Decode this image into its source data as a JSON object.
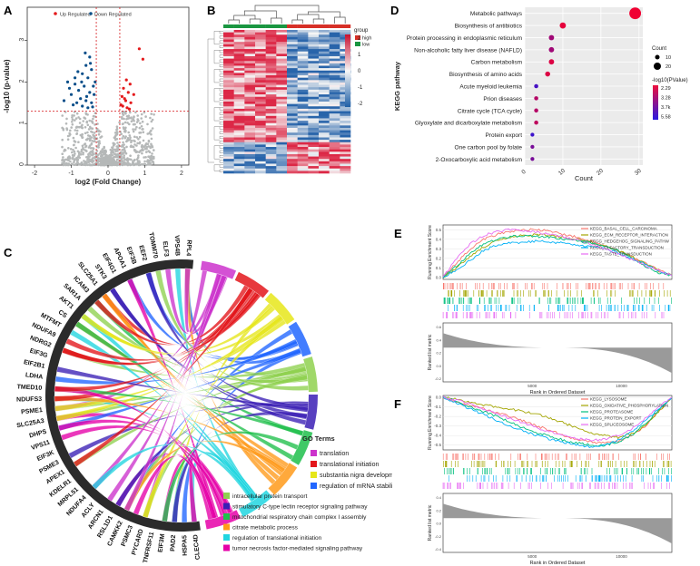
{
  "panel_labels": {
    "a": "A",
    "b": "B",
    "c": "C",
    "d": "D",
    "e": "E",
    "f": "F"
  },
  "colors": {
    "up": "#e41a1c",
    "down": "#0b4f8a",
    "ns": "#b5b8b8",
    "heat_high": "#c0143c",
    "heat_low": "#1f5fa6",
    "heat_mid": "#f4f4f4",
    "group_high": "#d73027",
    "group_low": "#1a9641"
  },
  "chart_data": [
    {
      "id": "volcano",
      "type": "scatter",
      "title": "",
      "xlabel": "log2 (Fold Change)",
      "ylabel": "-log10 (p-value)",
      "xlim": [
        -2.2,
        2.2
      ],
      "ylim": [
        0,
        3.8
      ],
      "x_ticks": [
        "-2",
        "-1",
        "0",
        "1",
        "2"
      ],
      "y_ticks": [
        "0",
        "1",
        "2",
        "3"
      ],
      "thresholds": {
        "logfc": 0.32,
        "neglog10p": 1.3
      },
      "legend": [
        {
          "label": "Up Regulated",
          "color": "#e41a1c"
        },
        {
          "label": "Down Regulated",
          "color": "#0b4f8a"
        }
      ],
      "series": [
        {
          "name": "Up Regulated",
          "color": "#e41a1c",
          "points": [
            [
              0.85,
              2.8
            ],
            [
              0.5,
              2.05
            ],
            [
              0.6,
              1.95
            ],
            [
              0.42,
              1.85
            ],
            [
              0.55,
              1.75
            ],
            [
              0.7,
              1.7
            ],
            [
              0.38,
              1.65
            ],
            [
              0.48,
              1.55
            ],
            [
              0.62,
              1.5
            ],
            [
              0.4,
              1.42
            ],
            [
              0.52,
              1.38
            ],
            [
              0.95,
              2.55
            ],
            [
              0.45,
              1.6
            ],
            [
              0.35,
              1.45
            ],
            [
              0.58,
              1.35
            ]
          ]
        },
        {
          "name": "Down Regulated",
          "color": "#0b4f8a",
          "points": [
            [
              -1.1,
              2.0
            ],
            [
              -0.9,
              1.95
            ],
            [
              -0.7,
              2.2
            ],
            [
              -0.6,
              2.4
            ],
            [
              -0.5,
              2.6
            ],
            [
              -0.45,
              2.3
            ],
            [
              -0.8,
              1.8
            ],
            [
              -1.0,
              1.7
            ],
            [
              -0.55,
              2.1
            ],
            [
              -0.65,
              1.9
            ],
            [
              -0.75,
              1.6
            ],
            [
              -0.4,
              1.9
            ],
            [
              -0.5,
              1.75
            ],
            [
              -0.6,
              1.55
            ],
            [
              -0.85,
              1.5
            ],
            [
              -0.95,
              1.45
            ],
            [
              -0.7,
              1.42
            ],
            [
              -0.45,
              1.5
            ],
            [
              -0.38,
              1.7
            ],
            [
              -0.55,
              1.38
            ],
            [
              -1.2,
              1.55
            ],
            [
              -0.9,
              2.1
            ],
            [
              -0.35,
              2.0
            ],
            [
              -0.62,
              2.7
            ],
            [
              -0.48,
              2.45
            ],
            [
              -0.72,
              2.0
            ],
            [
              -0.82,
              2.25
            ],
            [
              -1.05,
              1.85
            ],
            [
              -0.42,
              1.4
            ],
            [
              -0.58,
              1.65
            ]
          ]
        }
      ]
    },
    {
      "id": "heatmap",
      "type": "heatmap",
      "title": "",
      "legend_title": "group",
      "groups": [
        "high",
        "low"
      ],
      "color_scale": [
        "2",
        "1",
        "0",
        "-1",
        "-2"
      ],
      "n_rows": 60,
      "n_cols": 12,
      "high_cols": 6
    },
    {
      "id": "kegg_dot",
      "type": "scatter",
      "title": "",
      "xlabel": "Count",
      "ylabel": "KEGG pathway",
      "xlim": [
        0,
        31
      ],
      "x_ticks": [
        "0",
        "10",
        "20",
        "30"
      ],
      "size_legend_title": "Count",
      "size_legend": [
        "10",
        "20"
      ],
      "color_legend_title": "-log10(PValue)",
      "color_legend": [
        "2.29",
        "3.28",
        "3.7k",
        "5.58"
      ],
      "categories": [
        "Metabolic pathways",
        "Biosynthesis of antibiotics",
        "Protein processing in endoplasmic reticulum",
        "Non-alcoholic fatty liver disease (NAFLD)",
        "Carbon metabolism",
        "Biosynthesis of amino acids",
        "Acute myeloid leukemia",
        "Prion diseases",
        "Citrate cycle (TCA cycle)",
        "Glyoxylate and dicarboxylate metabolism",
        "Protein export",
        "One carbon pool by folate",
        "2-Oxocarboxylic acid metabolism"
      ],
      "values": [
        29,
        10,
        7,
        7,
        7,
        6,
        3,
        3,
        3,
        3,
        2,
        2,
        2
      ],
      "pvalue_level": [
        1.0,
        0.95,
        0.6,
        0.6,
        0.9,
        0.9,
        0.15,
        0.7,
        0.7,
        0.75,
        0.1,
        0.4,
        0.4
      ]
    },
    {
      "id": "chord",
      "type": "other",
      "title": "",
      "genes": [
        "RPL4",
        "VPS4B",
        "ELF3",
        "TOMM70",
        "EEF2",
        "EIF3B",
        "APOA1",
        "EIF4G1",
        "STK3",
        "SLC25A1",
        "ICAM3",
        "SAR1A",
        "AKT1",
        "CS",
        "MTFMT",
        "NDUFA9",
        "NDRG2",
        "EIF3G",
        "EIF2B1",
        "LDHA",
        "TMED10",
        "NDUFS3",
        "PSME1",
        "SLC25A3",
        "DHPS",
        "VPS11",
        "EIF3K",
        "PSME3",
        "APEX1",
        "KDELR1",
        "MRPL51",
        "NDUFA4",
        "ACLY",
        "ARCN1",
        "RSL1D1",
        "CAMKK2",
        "PSMC3",
        "PYCARD",
        "TNFRSF11",
        "EIF3M",
        "PAD2",
        "HSPA5",
        "CLEC4D"
      ],
      "legend_title": "GO Terms",
      "legend": [
        {
          "label": "translation",
          "color": "#cc33cc"
        },
        {
          "label": "translational initiation",
          "color": "#e3161b"
        },
        {
          "label": "substantia nigra development",
          "color": "#e6e61a"
        },
        {
          "label": "regulation of mRNA stability",
          "color": "#2166ff"
        },
        {
          "label": "intracellular protein transport",
          "color": "#8fd14f"
        },
        {
          "label": "stimulatory C-type lectin receptor signaling pathway",
          "color": "#3b1fb5"
        },
        {
          "label": "mitochondrial respiratory chain complex I assembly",
          "color": "#1fbf4b"
        },
        {
          "label": "citrate metabolic process",
          "color": "#ff9a1a"
        },
        {
          "label": "regulation of translational initiation",
          "color": "#21d6e0"
        },
        {
          "label": "tumor necrosis factor-mediated signaling pathway",
          "color": "#e600a8"
        }
      ]
    },
    {
      "id": "gsea_e",
      "type": "line",
      "title": "",
      "ylabel": "Running Enrichment Score",
      "ylabel2": "Ranked list metric",
      "xlabel": "Rank in Ordered Dataset",
      "x_ticks": [
        "5000",
        "10000"
      ],
      "y_ticks": [
        "0.5",
        "0.4",
        "0.3",
        "0.2",
        "0.1",
        "0.0"
      ],
      "y2_ticks": [
        "0.6",
        "0.4",
        "0.2",
        "0.0",
        "-0.2"
      ],
      "series": [
        {
          "name": "KEGG_BASAL_CELL_CARCINOMA",
          "color": "#f8766d",
          "values": [
            0.0,
            0.15,
            0.3,
            0.4,
            0.45,
            0.48,
            0.5,
            0.5,
            0.48,
            0.45,
            0.42,
            0.38,
            0.33,
            0.28,
            0.22,
            0.15,
            0.08,
            0.03
          ]
        },
        {
          "name": "KEGG_ECM_RECEPTOR_INTERACTION",
          "color": "#a3a500",
          "values": [
            0.0,
            0.1,
            0.22,
            0.32,
            0.38,
            0.42,
            0.44,
            0.45,
            0.44,
            0.42,
            0.4,
            0.37,
            0.33,
            0.28,
            0.22,
            0.15,
            0.07,
            0.02
          ]
        },
        {
          "name": "KEGG_HEDGEHOG_SIGNALING_PATHW",
          "color": "#00bf7d",
          "values": [
            0.0,
            0.12,
            0.25,
            0.35,
            0.4,
            0.43,
            0.44,
            0.43,
            0.42,
            0.4,
            0.38,
            0.36,
            0.33,
            0.28,
            0.2,
            0.12,
            0.05,
            0.02
          ]
        },
        {
          "name": "KEGG_OLFACTORY_TRANSDUCTION",
          "color": "#00b0f6",
          "values": [
            0.0,
            0.08,
            0.18,
            0.28,
            0.34,
            0.36,
            0.37,
            0.38,
            0.37,
            0.36,
            0.34,
            0.32,
            0.3,
            0.26,
            0.2,
            0.14,
            0.07,
            0.02
          ]
        },
        {
          "name": "KEGG_TASTE_TRANSDUCTION",
          "color": "#e76bf3",
          "values": [
            0.0,
            0.2,
            0.35,
            0.44,
            0.48,
            0.5,
            0.49,
            0.47,
            0.45,
            0.42,
            0.39,
            0.35,
            0.3,
            0.25,
            0.19,
            0.13,
            0.07,
            0.02
          ]
        }
      ]
    },
    {
      "id": "gsea_f",
      "type": "line",
      "title": "",
      "ylabel": "Running Enrichment Score",
      "ylabel2": "Ranked list metric",
      "xlabel": "Rank in Ordered Dataset",
      "x_ticks": [
        "5000",
        "10000"
      ],
      "y_ticks": [
        "0.0",
        "-0.1",
        "-0.2",
        "-0.3",
        "-0.4",
        "-0.5"
      ],
      "y2_ticks": [
        "0.4",
        "0.2",
        "0.0",
        "-0.2",
        "-0.4"
      ],
      "series": [
        {
          "name": "KEGG_LYSOSOME",
          "color": "#f8766d",
          "values": [
            0.0,
            -0.05,
            -0.08,
            -0.12,
            -0.16,
            -0.2,
            -0.25,
            -0.3,
            -0.35,
            -0.4,
            -0.44,
            -0.47,
            -0.48,
            -0.46,
            -0.4,
            -0.3,
            -0.15,
            0.0
          ]
        },
        {
          "name": "KEGG_OXIDATIVE_PHOSPHORYLATION",
          "color": "#a3a500",
          "values": [
            0.0,
            -0.02,
            -0.05,
            -0.08,
            -0.1,
            -0.12,
            -0.15,
            -0.18,
            -0.22,
            -0.27,
            -0.32,
            -0.37,
            -0.4,
            -0.42,
            -0.38,
            -0.3,
            -0.15,
            0.0
          ]
        },
        {
          "name": "KEGG_PROTEASOME",
          "color": "#00bf7d",
          "values": [
            0.0,
            -0.04,
            -0.1,
            -0.15,
            -0.2,
            -0.26,
            -0.32,
            -0.37,
            -0.41,
            -0.45,
            -0.48,
            -0.5,
            -0.5,
            -0.47,
            -0.4,
            -0.28,
            -0.14,
            0.0
          ]
        },
        {
          "name": "KEGG_PROTEIN_EXPORT",
          "color": "#00b0f6",
          "values": [
            0.0,
            -0.06,
            -0.12,
            -0.18,
            -0.24,
            -0.3,
            -0.35,
            -0.4,
            -0.44,
            -0.47,
            -0.5,
            -0.52,
            -0.5,
            -0.45,
            -0.36,
            -0.25,
            -0.12,
            0.0
          ]
        },
        {
          "name": "KEGG_SPLICEOSOME",
          "color": "#e76bf3",
          "values": [
            0.0,
            -0.03,
            -0.07,
            -0.12,
            -0.17,
            -0.22,
            -0.27,
            -0.32,
            -0.36,
            -0.4,
            -0.43,
            -0.45,
            -0.44,
            -0.4,
            -0.33,
            -0.22,
            -0.1,
            0.0
          ]
        }
      ]
    }
  ]
}
